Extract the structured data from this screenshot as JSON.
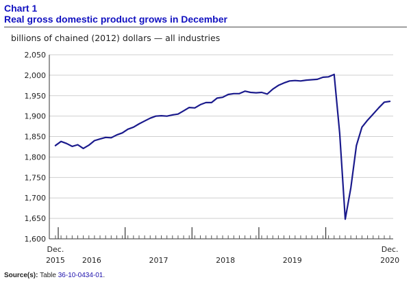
{
  "header": {
    "chart_label": "Chart 1",
    "title": "Real gross domestic product grows in December"
  },
  "unit_label": "billions of chained (2012) dollars — all industries",
  "source": {
    "label": "Source(s):",
    "text": "Table",
    "link": "36-10-0434-01",
    "end": "."
  },
  "colors": {
    "line": "#1a1a8c",
    "grid": "#cfcfcf",
    "axis": "#333333",
    "title": "#1010c0"
  },
  "chart_data": {
    "type": "line",
    "title": "Real gross domestic product grows in December",
    "ylabel": "billions of chained (2012) dollars — all industries",
    "xlabel": "",
    "ylim": [
      1600,
      2050
    ],
    "yticks": [
      1600,
      1650,
      1700,
      1750,
      1800,
      1850,
      1900,
      1950,
      2000,
      2050
    ],
    "ytick_labels": [
      "1,600",
      "1,650",
      "1,700",
      "1,750",
      "1,800",
      "1,850",
      "1,900",
      "1,950",
      "2,000",
      "2,050"
    ],
    "grid": true,
    "x_labels": [
      {
        "top": "Dec.",
        "bottom": "2015",
        "month_index": 0
      },
      {
        "top": "",
        "bottom": "2016",
        "month_index": 6.5
      },
      {
        "top": "",
        "bottom": "2017",
        "month_index": 18.5
      },
      {
        "top": "",
        "bottom": "2018",
        "month_index": 30.5
      },
      {
        "top": "",
        "bottom": "2019",
        "month_index": 42.5
      },
      {
        "top": "Dec.",
        "bottom": "2020",
        "month_index": 60
      }
    ],
    "major_tick_months": [
      0.5,
      12.5,
      24.5,
      36.5,
      48.5
    ],
    "series": [
      {
        "x_start": "2015-12",
        "x_end": "2020-12",
        "values": [
          1828,
          1838,
          1833,
          1826,
          1830,
          1821,
          1829,
          1840,
          1844,
          1848,
          1847,
          1854,
          1859,
          1868,
          1873,
          1881,
          1888,
          1895,
          1900,
          1901,
          1900,
          1903,
          1905,
          1913,
          1921,
          1920,
          1928,
          1933,
          1933,
          1944,
          1946,
          1953,
          1955,
          1955,
          1961,
          1958,
          1957,
          1958,
          1954,
          1966,
          1975,
          1981,
          1986,
          1987,
          1986,
          1988,
          1989,
          1990,
          1995,
          1996,
          2002,
          1858,
          1648,
          1725,
          1828,
          1873,
          1890,
          1905,
          1920,
          1934,
          1936
        ]
      }
    ]
  }
}
